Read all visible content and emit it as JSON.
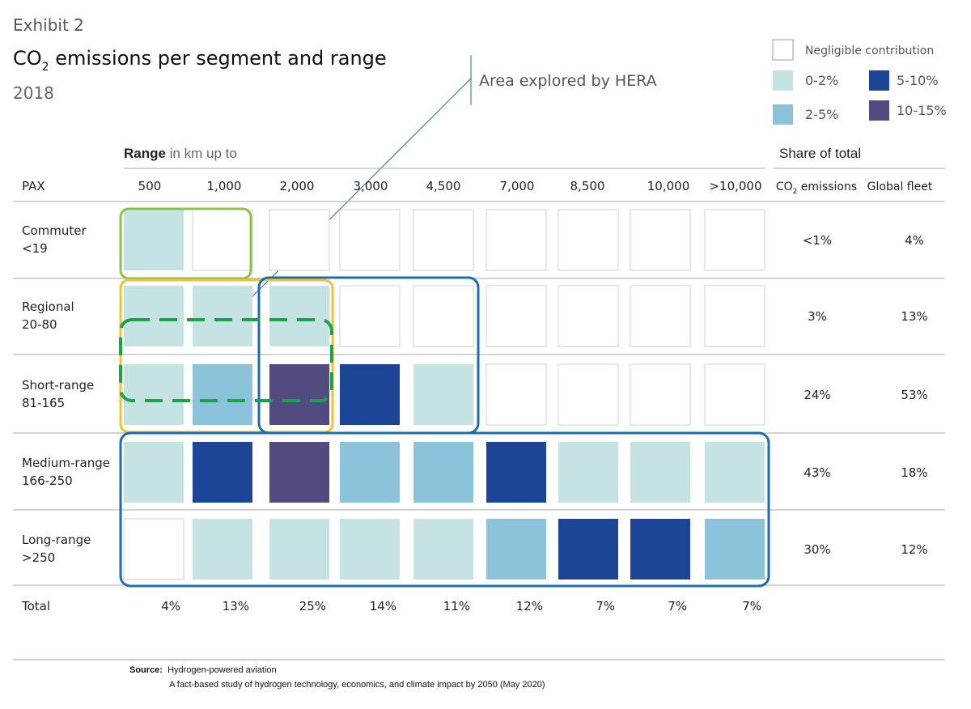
{
  "header": {
    "exhibit": "Exhibit 2",
    "title_main": "CO",
    "title_sub": "2",
    "title_rest": " emissions per segment and range",
    "year": "2018",
    "hera_label": "Area explored by HERA"
  },
  "legend": {
    "items": [
      {
        "label": "Negligible contribution",
        "color": "#ffffff"
      },
      {
        "label": "0-2%",
        "color": "#c5e3e3"
      },
      {
        "label": "2-5%",
        "color": "#8ac3da"
      },
      {
        "label": "5-10%",
        "color": "#1d4595"
      },
      {
        "label": "10-15%",
        "color": "#514b7f"
      }
    ]
  },
  "chart_data": {
    "type": "heatmap",
    "x_title_bold": "Range",
    "x_title_rest": " in km up to",
    "y_header": "PAX",
    "share_title": "Share of total",
    "col_co2_main": "CO",
    "col_co2_sub": "2",
    "col_co2_rest": " emissions",
    "col_fleet": "Global fleet",
    "columns": [
      "500",
      "1,000",
      "2,000",
      "3,000",
      "4,500",
      "7,000",
      "8,500",
      "10,000",
      ">10,000"
    ],
    "rows": [
      {
        "name": "Commuter",
        "range": "<19",
        "levels": [
          1,
          0,
          0,
          0,
          0,
          0,
          0,
          0,
          0
        ],
        "co2": "<1%",
        "fleet": "4%"
      },
      {
        "name": "Regional",
        "range": "20-80",
        "levels": [
          1,
          1,
          1,
          0,
          0,
          0,
          0,
          0,
          0
        ],
        "co2": "3%",
        "fleet": "13%"
      },
      {
        "name": "Short-range",
        "range": "81-165",
        "levels": [
          1,
          2,
          4,
          3,
          1,
          0,
          0,
          0,
          0
        ],
        "co2": "24%",
        "fleet": "53%"
      },
      {
        "name": "Medium-range",
        "range": "166-250",
        "levels": [
          1,
          3,
          4,
          2,
          2,
          3,
          1,
          1,
          1
        ],
        "co2": "43%",
        "fleet": "18%"
      },
      {
        "name": "Long-range",
        "range": ">250",
        "levels": [
          0,
          1,
          1,
          1,
          1,
          2,
          3,
          3,
          2
        ],
        "co2": "30%",
        "fleet": "12%"
      }
    ],
    "total_label": "Total",
    "totals": [
      "4%",
      "13%",
      "25%",
      "14%",
      "11%",
      "12%",
      "7%",
      "7%",
      "7%"
    ],
    "level_legend": [
      "Negligible contribution",
      "0-2%",
      "2-5%",
      "5-10%",
      "10-15%"
    ]
  },
  "source": {
    "label": "Source:",
    "line1": "Hydrogen-powered aviation",
    "line2": "A fact-based study of hydrogen technology, economics, and climate impact by 2050 (May 2020)"
  }
}
